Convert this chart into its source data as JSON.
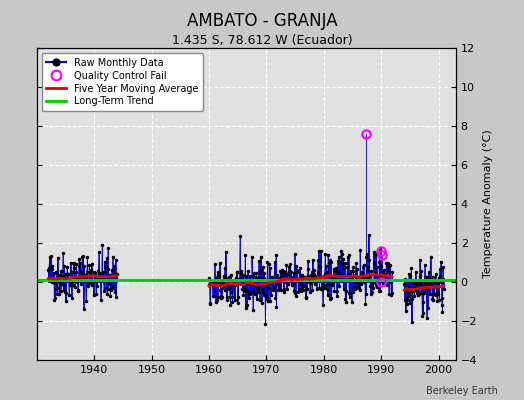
{
  "title": "AMBATO - GRANJA",
  "subtitle": "1.435 S, 78.612 W (Ecuador)",
  "ylabel": "Temperature Anomaly (°C)",
  "credit": "Berkeley Earth",
  "ylim": [
    -4,
    12
  ],
  "yticks": [
    -4,
    -2,
    0,
    2,
    4,
    6,
    8,
    10,
    12
  ],
  "xlim": [
    1930,
    2003
  ],
  "xticks": [
    1940,
    1950,
    1960,
    1970,
    1980,
    1990,
    2000
  ],
  "background_color": "#c8c8c8",
  "plot_bg_color": "#e0e0e0",
  "grid_color": "#ffffff",
  "raw_line_color": "#0000cc",
  "raw_dot_color": "#000000",
  "moving_avg_color": "#dd0000",
  "trend_color": "#00cc00",
  "qc_fail_color": "#ff00ff",
  "legend_labels": [
    "Raw Monthly Data",
    "Quality Control Fail",
    "Five Year Moving Average",
    "Long-Term Trend"
  ],
  "seg1_start": 1932.0,
  "seg1_end": 1944.0,
  "seg2_start": 1960.0,
  "seg2_end": 1992.0,
  "seg3_start": 1994.0,
  "seg3_end": 2001.0,
  "qc_fail_points": [
    [
      1987.3,
      7.6
    ],
    [
      1990.0,
      1.6
    ],
    [
      1990.15,
      1.4
    ],
    [
      1990.0,
      0.0
    ]
  ],
  "trend_level": 0.12,
  "title_fontsize": 12,
  "subtitle_fontsize": 9,
  "tick_fontsize": 8,
  "ylabel_fontsize": 8
}
